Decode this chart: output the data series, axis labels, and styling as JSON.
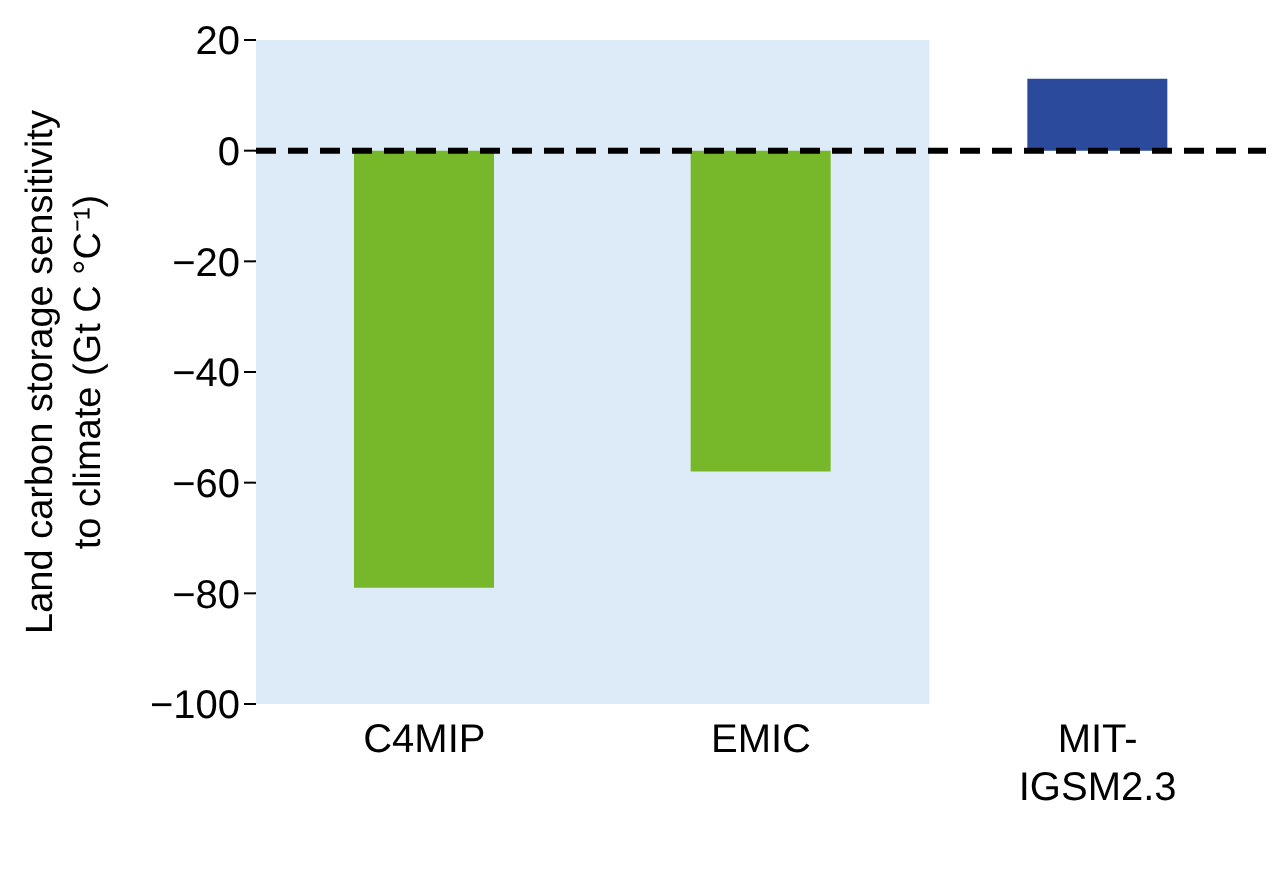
{
  "chart_data": {
    "type": "bar",
    "ylabel": "Land carbon storage sensitivity to climate (Gt C °C⁻¹)",
    "categories": [
      "C4MIP",
      "EMIC",
      "MIT-IGSM2.3"
    ],
    "values": [
      -79,
      -58,
      13
    ],
    "colors": [
      "#77b82a",
      "#77b82a",
      "#2b4a9c"
    ],
    "ylim": [
      -100,
      20
    ],
    "yticks": [
      -100,
      -80,
      -60,
      -40,
      -20,
      0,
      20
    ],
    "ref_lines": [
      {
        "axis": "y",
        "value": 0,
        "color": "#000000",
        "line_style": "dashed"
      }
    ],
    "bands": [
      {
        "axis": "x",
        "from": "C4MIP",
        "to": "EMIC",
        "color": "#ddeaf8"
      }
    ],
    "grid": false
  }
}
